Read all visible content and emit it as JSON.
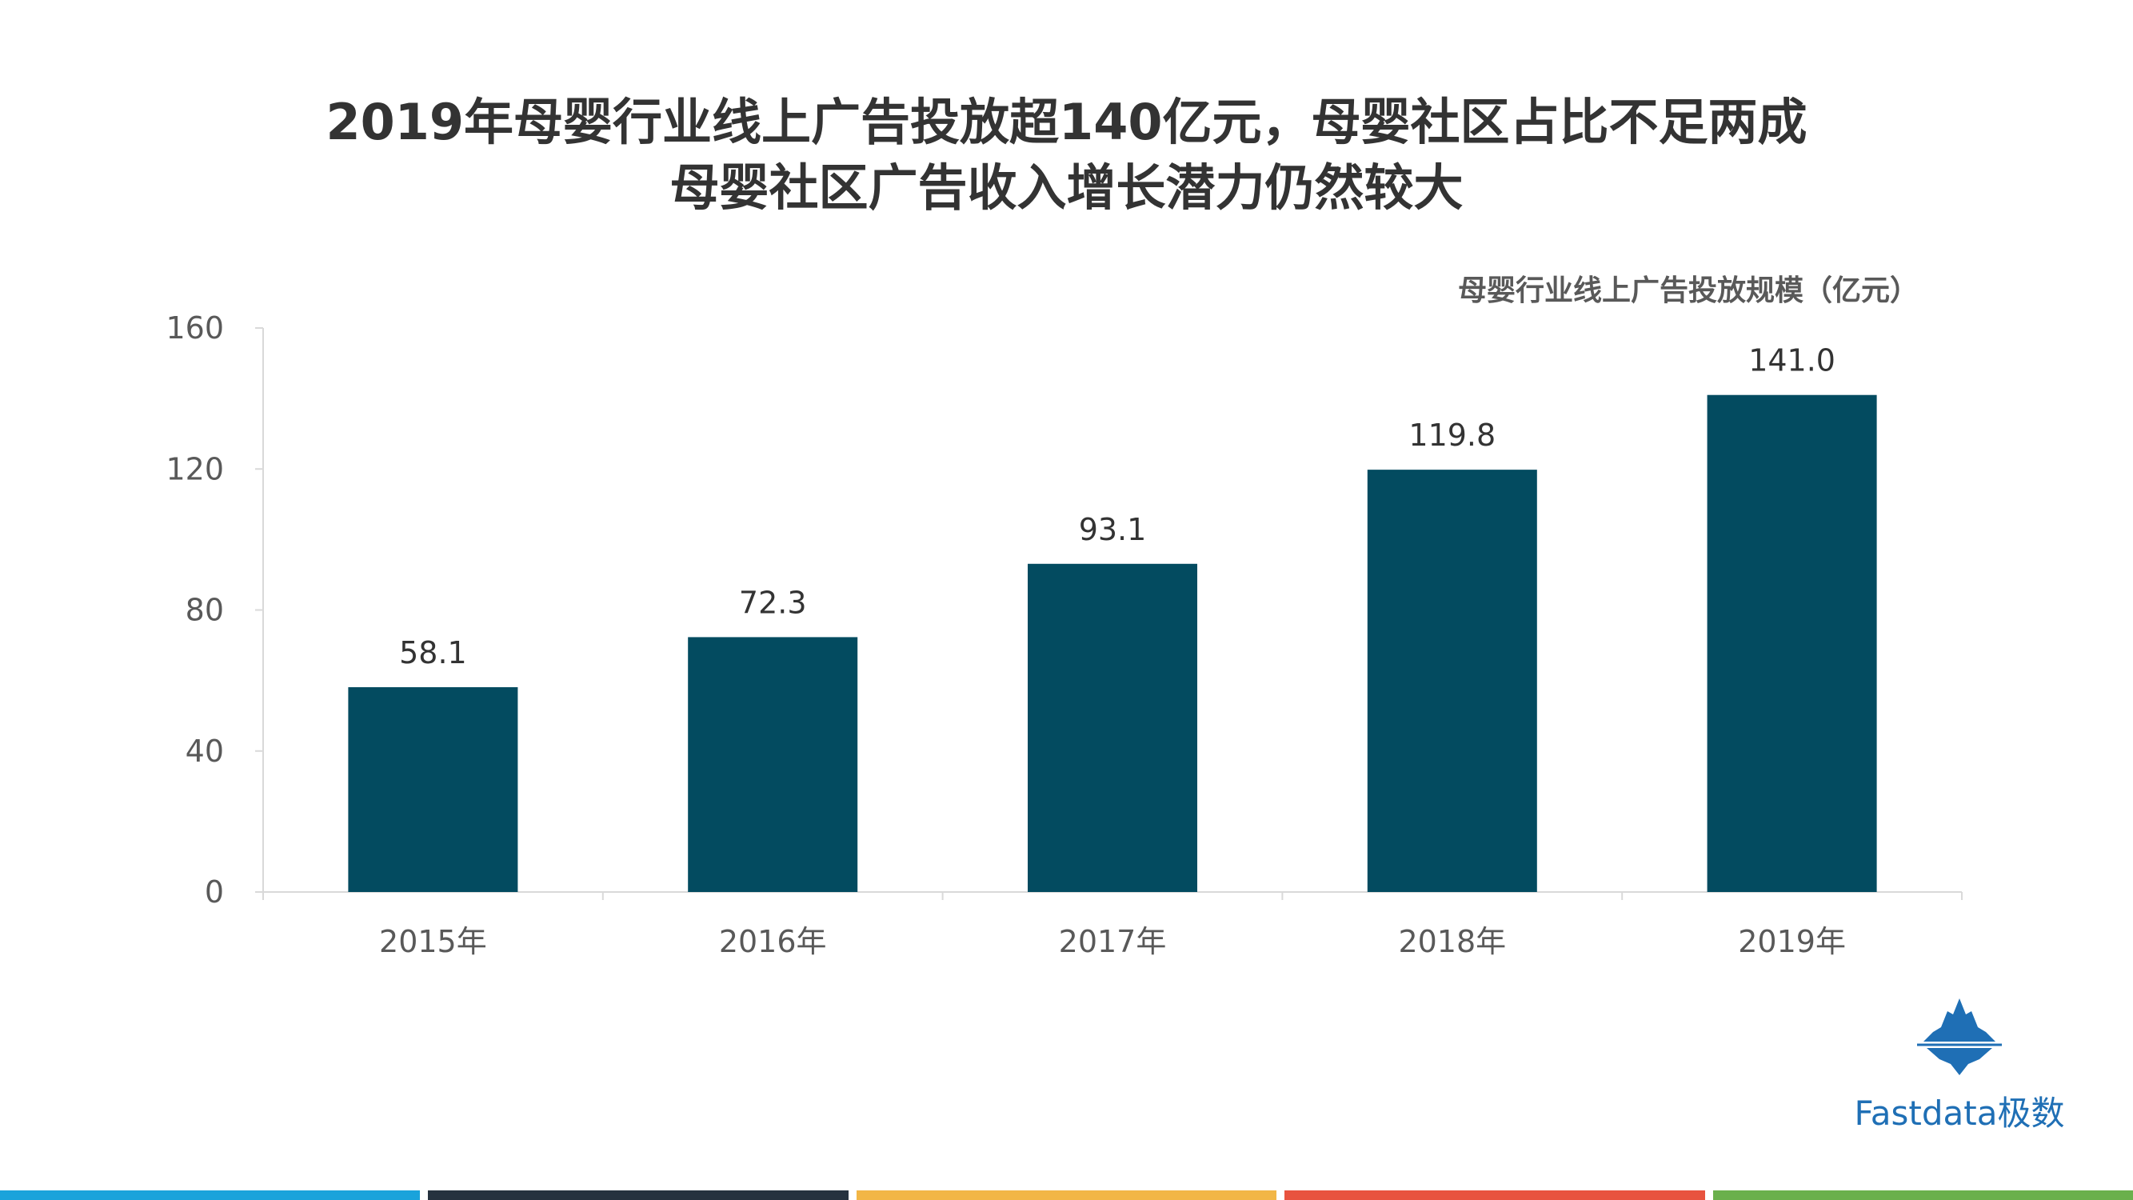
{
  "title": {
    "line1": "2019年母婴行业线上广告投放超140亿元，母婴社区占比不足两成",
    "line2": "母婴社区广告收入增长潜力仍然较大"
  },
  "chart_data": {
    "type": "bar",
    "series_caption": "母婴行业线上广告投放规模（亿元）",
    "categories": [
      "2015年",
      "2016年",
      "2017年",
      "2018年",
      "2019年"
    ],
    "values": [
      58.1,
      72.3,
      93.1,
      119.8,
      141.0
    ],
    "value_labels": [
      "58.1",
      "72.3",
      "93.1",
      "119.8",
      "141.0"
    ],
    "ylim": [
      0,
      160
    ],
    "yticks": [
      0,
      40,
      80,
      120,
      160
    ],
    "bar_color": "#034B60",
    "grid": false
  },
  "logo": {
    "text": "Fastdata极数",
    "icon": "iceberg-icon",
    "color": "#1F6FB5"
  },
  "footer_colors": [
    "#1AA3DB",
    "#26323F",
    "#F2B646",
    "#E8533F",
    "#6AB04C"
  ]
}
